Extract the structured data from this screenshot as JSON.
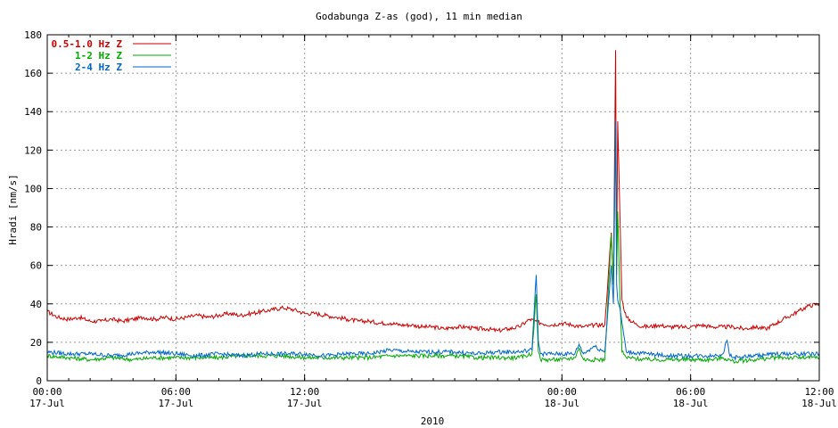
{
  "chart_data": {
    "type": "line",
    "title": "Godabunga Z-as (god), 11 min median",
    "ylabel": "Hradi [nm/s]",
    "xlabel": "2010",
    "ylim": [
      0,
      180
    ],
    "xlim_hours": [
      0,
      36
    ],
    "y_ticks": [
      "0",
      "20",
      "40",
      "60",
      "80",
      "100",
      "120",
      "140",
      "160",
      "180"
    ],
    "x_ticks": [
      {
        "time": "00:00",
        "date": "17-Jul",
        "hour": 0
      },
      {
        "time": "06:00",
        "date": "17-Jul",
        "hour": 6
      },
      {
        "time": "12:00",
        "date": "17-Jul",
        "hour": 12
      },
      {
        "time": "00:00",
        "date": "18-Jul",
        "hour": 24
      },
      {
        "time": "06:00",
        "date": "18-Jul",
        "hour": 30
      },
      {
        "time": "12:00",
        "date": "18-Jul",
        "hour": 36
      }
    ],
    "grid": true,
    "legend_position": "top-left",
    "series": [
      {
        "name": "0.5-1.0 Hz Z",
        "color": "#cc0000",
        "points": [
          [
            0,
            36
          ],
          [
            0.5,
            33
          ],
          [
            1,
            32
          ],
          [
            1.5,
            33
          ],
          [
            2,
            31
          ],
          [
            2.5,
            31
          ],
          [
            3,
            32
          ],
          [
            3.5,
            31
          ],
          [
            4,
            32
          ],
          [
            4.5,
            33
          ],
          [
            5,
            32
          ],
          [
            5.5,
            33
          ],
          [
            6,
            32
          ],
          [
            6.5,
            33
          ],
          [
            7,
            34
          ],
          [
            7.5,
            33
          ],
          [
            8,
            34
          ],
          [
            8.5,
            35
          ],
          [
            9,
            34
          ],
          [
            9.5,
            35
          ],
          [
            10,
            36
          ],
          [
            10.5,
            37
          ],
          [
            11,
            38
          ],
          [
            11.5,
            37
          ],
          [
            12,
            35
          ],
          [
            12.5,
            35
          ],
          [
            13,
            34
          ],
          [
            13.5,
            33
          ],
          [
            14,
            32
          ],
          [
            14.5,
            31
          ],
          [
            15,
            31
          ],
          [
            15.5,
            30
          ],
          [
            16,
            30
          ],
          [
            16.5,
            29
          ],
          [
            17,
            29
          ],
          [
            17.5,
            28
          ],
          [
            18,
            28
          ],
          [
            18.5,
            27
          ],
          [
            19,
            28
          ],
          [
            19.5,
            28
          ],
          [
            20,
            27
          ],
          [
            20.5,
            27
          ],
          [
            21,
            26
          ],
          [
            21.5,
            27
          ],
          [
            22,
            28
          ],
          [
            22.5,
            32
          ],
          [
            23,
            30
          ],
          [
            23.5,
            29
          ],
          [
            24,
            30
          ],
          [
            24.5,
            29
          ],
          [
            25,
            28
          ],
          [
            25.5,
            29
          ],
          [
            26,
            29
          ],
          [
            26.3,
            77
          ],
          [
            26.4,
            50
          ],
          [
            26.5,
            172
          ],
          [
            26.55,
            60
          ],
          [
            26.6,
            135
          ],
          [
            26.7,
            88
          ],
          [
            26.8,
            42
          ],
          [
            27,
            33
          ],
          [
            27.5,
            29
          ],
          [
            28,
            28
          ],
          [
            28.5,
            29
          ],
          [
            29,
            28
          ],
          [
            29.5,
            28
          ],
          [
            30,
            28
          ],
          [
            30.5,
            29
          ],
          [
            31,
            28
          ],
          [
            31.5,
            28
          ],
          [
            32,
            28
          ],
          [
            32.5,
            27
          ],
          [
            33,
            28
          ],
          [
            33.5,
            27
          ],
          [
            34,
            30
          ],
          [
            34.5,
            33
          ],
          [
            35,
            36
          ],
          [
            35.5,
            39
          ],
          [
            36,
            40
          ]
        ]
      },
      {
        "name": "1-2 Hz Z",
        "color": "#00aa00",
        "points": [
          [
            0,
            13
          ],
          [
            1,
            12
          ],
          [
            2,
            11
          ],
          [
            3,
            12
          ],
          [
            4,
            11
          ],
          [
            5,
            12
          ],
          [
            6,
            12
          ],
          [
            7,
            12
          ],
          [
            8,
            12
          ],
          [
            9,
            13
          ],
          [
            10,
            13
          ],
          [
            11,
            13
          ],
          [
            12,
            12
          ],
          [
            13,
            12
          ],
          [
            14,
            12
          ],
          [
            15,
            12
          ],
          [
            16,
            13
          ],
          [
            17,
            13
          ],
          [
            18,
            13
          ],
          [
            19,
            13
          ],
          [
            20,
            12
          ],
          [
            21,
            12
          ],
          [
            22,
            12
          ],
          [
            22.6,
            14
          ],
          [
            22.8,
            45
          ],
          [
            22.9,
            15
          ],
          [
            23,
            11
          ],
          [
            24,
            11
          ],
          [
            24.6,
            12
          ],
          [
            24.8,
            17
          ],
          [
            25,
            11
          ],
          [
            26,
            11
          ],
          [
            26.3,
            76
          ],
          [
            26.4,
            50
          ],
          [
            26.5,
            135
          ],
          [
            26.55,
            55
          ],
          [
            26.6,
            88
          ],
          [
            26.7,
            45
          ],
          [
            26.8,
            15
          ],
          [
            27,
            12
          ],
          [
            28,
            11
          ],
          [
            29,
            11
          ],
          [
            30,
            11
          ],
          [
            31,
            11
          ],
          [
            31.5,
            12
          ],
          [
            32,
            10
          ],
          [
            33,
            11
          ],
          [
            34,
            12
          ],
          [
            35,
            12
          ],
          [
            36,
            12
          ]
        ]
      },
      {
        "name": "2-4 Hz Z",
        "color": "#0066cc",
        "points": [
          [
            0,
            15
          ],
          [
            1,
            14
          ],
          [
            2,
            14
          ],
          [
            3,
            13
          ],
          [
            4,
            14
          ],
          [
            5,
            15
          ],
          [
            6,
            14
          ],
          [
            7,
            13
          ],
          [
            8,
            14
          ],
          [
            9,
            13
          ],
          [
            10,
            14
          ],
          [
            11,
            14
          ],
          [
            12,
            14
          ],
          [
            13,
            13
          ],
          [
            14,
            14
          ],
          [
            15,
            14
          ],
          [
            16,
            16
          ],
          [
            17,
            15
          ],
          [
            18,
            15
          ],
          [
            19,
            15
          ],
          [
            20,
            14
          ],
          [
            21,
            15
          ],
          [
            22,
            15
          ],
          [
            22.6,
            16
          ],
          [
            22.8,
            55
          ],
          [
            22.9,
            20
          ],
          [
            23,
            14
          ],
          [
            24,
            14
          ],
          [
            24.6,
            14
          ],
          [
            24.8,
            19
          ],
          [
            25,
            14
          ],
          [
            25.5,
            18
          ],
          [
            26,
            15
          ],
          [
            26.3,
            60
          ],
          [
            26.4,
            40
          ],
          [
            26.5,
            135
          ],
          [
            26.55,
            50
          ],
          [
            26.6,
            42
          ],
          [
            26.7,
            38
          ],
          [
            26.8,
            30
          ],
          [
            27,
            15
          ],
          [
            28,
            14
          ],
          [
            29,
            13
          ],
          [
            30,
            13
          ],
          [
            31,
            13
          ],
          [
            31.5,
            14
          ],
          [
            31.7,
            21
          ],
          [
            31.8,
            14
          ],
          [
            32,
            12
          ],
          [
            33,
            13
          ],
          [
            34,
            14
          ],
          [
            35,
            14
          ],
          [
            36,
            14
          ]
        ]
      }
    ]
  }
}
